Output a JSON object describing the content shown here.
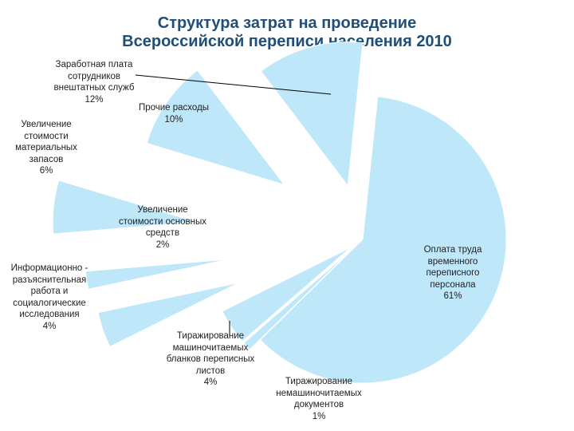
{
  "title": {
    "lines": [
      "Структура затрат на проведение",
      "Всероссийской переписи населения 2010"
    ]
  },
  "colors": {
    "slice_fill": "#bfe7fa",
    "title": "#1f4e79",
    "leader_line": "#000000"
  },
  "chart_data": {
    "type": "pie",
    "title": "Структура затрат на проведение Всероссийской переписи населения 2010",
    "exploded": true,
    "slices": [
      {
        "label_lines": [
          "Оплата труда",
          "временного",
          "переписного",
          "персонала"
        ],
        "label": "Оплата труда временного переписного персонала",
        "value": 61,
        "value_text": "61%"
      },
      {
        "label_lines": [
          "Тиражирование",
          "немашиночитаемых",
          "документов"
        ],
        "label": "Тиражирование немашиночитаемых документов",
        "value": 1,
        "value_text": "1%"
      },
      {
        "label_lines": [
          "Тиражирование",
          "машиночитаемых",
          "бланков переписных",
          "листов"
        ],
        "label": "Тиражирование машиночитаемых бланков переписных листов",
        "value": 4,
        "value_text": "4%"
      },
      {
        "label_lines": [
          "Информационно -",
          "разъяснительная",
          "работа и",
          "социалогические",
          "исследования"
        ],
        "label": "Информационно - разъяснительная работа и социалогические исследования",
        "value": 4,
        "value_text": "4%"
      },
      {
        "label_lines": [
          "Увеличение",
          "стоимости основных",
          "средств"
        ],
        "label": "Увеличение стоимости основных средств",
        "value": 2,
        "value_text": "2%"
      },
      {
        "label_lines": [
          "Увеличение",
          "стоимости",
          "материальных",
          "запасов"
        ],
        "label": "Увеличение стоимости материальных запасов",
        "value": 6,
        "value_text": "6%"
      },
      {
        "label_lines": [
          "Прочие расходы"
        ],
        "label": "Прочие расходы",
        "value": 10,
        "value_text": "10%"
      },
      {
        "label_lines": [
          "Заработная плата",
          "сотрудников",
          "внештатных служб"
        ],
        "label": "Заработная плата сотрудников внештатных служб",
        "value": 12,
        "value_text": "12%"
      }
    ]
  }
}
